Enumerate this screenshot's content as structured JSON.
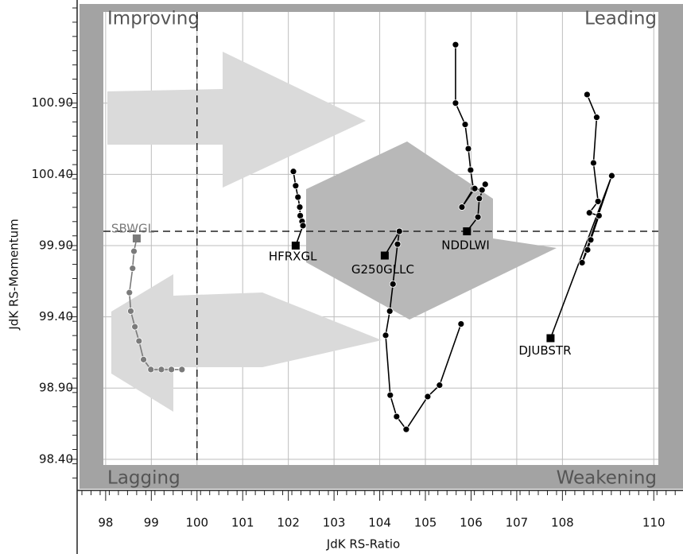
{
  "chart_data": {
    "type": "line",
    "x_label": "JdK RS-Ratio",
    "y_label": "JdK RS-Momentum",
    "quadrant_labels": {
      "top_left": "Improving",
      "top_right": "Leading",
      "bottom_left": "Lagging",
      "bottom_right": "Weakening"
    },
    "center_x": 100,
    "center_y": 100,
    "xlim": [
      97.95,
      110.1
    ],
    "ylim": [
      98.36,
      101.54
    ],
    "xticks": [
      98,
      99,
      100,
      101,
      102,
      103,
      104,
      105,
      106,
      107,
      108,
      110
    ],
    "yticks": [
      {
        "value": 98.4,
        "label": "98.40"
      },
      {
        "value": 98.9,
        "label": "98.90"
      },
      {
        "value": 99.4,
        "label": "99.40"
      },
      {
        "value": 99.9,
        "label": "99.90"
      },
      {
        "value": 100.4,
        "label": "100.40"
      },
      {
        "value": 100.9,
        "label": "100.90"
      }
    ],
    "grid": true,
    "series": [
      {
        "name": "SBWGL",
        "color": "#7a7a7a",
        "x": [
          99.67,
          99.44,
          99.22,
          98.99,
          98.83,
          98.73,
          98.64,
          98.55,
          98.52,
          98.59,
          98.62,
          98.68
        ],
        "y": [
          99.03,
          99.03,
          99.03,
          99.03,
          99.1,
          99.23,
          99.33,
          99.44,
          99.57,
          99.74,
          99.86,
          99.95
        ]
      },
      {
        "name": "HFRXGL",
        "color": "#000000",
        "x": [
          102.11,
          102.16,
          102.21,
          102.25,
          102.26,
          102.3,
          102.32,
          102.16
        ],
        "y": [
          100.42,
          100.32,
          100.24,
          100.17,
          100.11,
          100.07,
          100.04,
          99.9
        ]
      },
      {
        "name": "G250GLLC",
        "color": "#000000",
        "x": [
          105.78,
          105.31,
          105.05,
          104.58,
          104.37,
          104.23,
          104.13,
          104.22,
          104.29,
          104.39,
          104.43,
          104.11
        ],
        "y": [
          99.35,
          98.92,
          98.84,
          98.61,
          98.7,
          98.85,
          99.27,
          99.44,
          99.63,
          99.91,
          100.0,
          99.83
        ]
      },
      {
        "name": "NDDLWI",
        "color": "#000000",
        "x": [
          105.66,
          105.66,
          105.87,
          105.94,
          105.99,
          106.05,
          105.8,
          106.08,
          106.24,
          106.31,
          106.18,
          106.15,
          105.91
        ],
        "y": [
          101.31,
          100.9,
          100.75,
          100.58,
          100.43,
          100.3,
          100.17,
          100.3,
          100.29,
          100.33,
          100.23,
          100.1,
          100.0
        ]
      },
      {
        "name": "DJUBSTR",
        "color": "#000000",
        "x": [
          108.54,
          108.75,
          108.68,
          108.78,
          108.59,
          108.8,
          108.62,
          108.55,
          108.43,
          109.08,
          107.74
        ],
        "y": [
          100.96,
          100.8,
          100.48,
          100.21,
          100.13,
          100.11,
          99.94,
          99.87,
          99.78,
          100.39,
          99.25
        ]
      }
    ]
  }
}
